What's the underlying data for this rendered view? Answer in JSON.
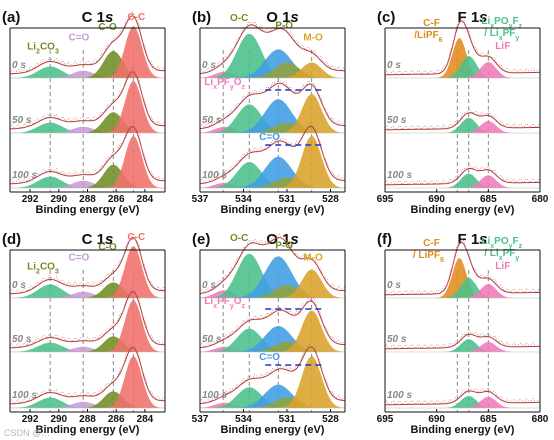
{
  "colors": {
    "li2co3": "#4ac08a",
    "co_c": "#c79bd6",
    "c_o": "#6f8e24",
    "cc": "#f0706b",
    "oc": "#4ac08a",
    "c_eq_o": "#3f9de3",
    "po": "#8fa33f",
    "mo": "#d9a32a",
    "cf": "#e38b1c",
    "lipof": "#4ac08a",
    "lif": "#f07ab8",
    "envelope": "#b23c3c",
    "dash": "#888888",
    "bluedash": "#2233cc"
  },
  "chart_data": [
    {
      "panel": "(a)",
      "title": "C 1s",
      "element": "C 1",
      "orbital": "s",
      "type": "area",
      "kind": "C",
      "xlabel": "Binding energy (eV)",
      "xlim": [
        293.4,
        282.6
      ],
      "xticks": [
        292,
        290,
        288,
        286,
        284
      ],
      "times": [
        "0 s",
        "50 s",
        "100 s"
      ],
      "peaks": [
        {
          "name": "Li2CO3",
          "center": 290.6,
          "fwhm": 2.0,
          "color": "li2co3",
          "amps": [
            0.22,
            0.2,
            0.22
          ]
        },
        {
          "name": "C=O",
          "center": 288.3,
          "fwhm": 1.8,
          "color": "co_c",
          "amps": [
            0.14,
            0.12,
            0.14
          ]
        },
        {
          "name": "C-O",
          "center": 286.2,
          "fwhm": 1.6,
          "color": "c_o",
          "amps": [
            0.52,
            0.4,
            0.45
          ]
        },
        {
          "name": "C-C",
          "center": 284.8,
          "fwhm": 1.4,
          "color": "cc",
          "amps": [
            1.0,
            1.0,
            1.0
          ]
        }
      ],
      "dashes": [
        290.6,
        288.3,
        286.2,
        284.8
      ],
      "annotations": [
        {
          "text": "Li2CO3",
          "x": 291.1,
          "y": 0.55,
          "color": "c_o"
        },
        {
          "text": "C=O",
          "x": 288.6,
          "y": 0.72,
          "color": "co_c"
        },
        {
          "text": "C-O",
          "x": 286.6,
          "y": 0.92,
          "color": "c_o"
        },
        {
          "text": "C-C",
          "x": 284.6,
          "y": 1.12,
          "color": "cc"
        }
      ]
    },
    {
      "panel": "(b)",
      "title": "O 1s",
      "element": "O 1",
      "orbital": "s",
      "type": "area",
      "kind": "O",
      "xlabel": "Binding energy (eV)",
      "xlim": [
        537.0,
        527.0
      ],
      "xticks": [
        537,
        534,
        531,
        528
      ],
      "times": [
        "0 s",
        "50 s",
        "100 s"
      ],
      "peaks": [
        {
          "name": "LixPFyOz",
          "center": 535.3,
          "fwhm": 1.6,
          "color": "lif",
          "amps": [
            0.12,
            0.12,
            0.1
          ]
        },
        {
          "name": "O-C",
          "center": 533.6,
          "fwhm": 2.0,
          "color": "oc",
          "amps": [
            0.85,
            0.55,
            0.5
          ]
        },
        {
          "name": "C=O",
          "center": 531.6,
          "fwhm": 2.2,
          "color": "c_eq_o",
          "amps": [
            0.55,
            0.65,
            0.6
          ]
        },
        {
          "name": "P-O",
          "center": 531.0,
          "fwhm": 2.0,
          "color": "po",
          "amps": [
            0.3,
            0.2,
            0.2
          ]
        },
        {
          "name": "M-O",
          "center": 529.3,
          "fwhm": 1.6,
          "color": "mo",
          "amps": [
            0.3,
            0.75,
            1.0
          ]
        }
      ],
      "dashes": [
        535.4,
        533.6,
        531.6,
        529.3
      ],
      "annotations": [
        {
          "text": "O-C",
          "x": 534.3,
          "y": 1.1,
          "color": "c_o"
        },
        {
          "text": "P-O",
          "x": 531.2,
          "y": 0.95,
          "color": "c_o"
        },
        {
          "text": "M-O",
          "x": 529.2,
          "y": 0.72,
          "color": "mo"
        }
      ],
      "midlabels": [
        {
          "text": "LixPFyOz",
          "x": 535.3,
          "row": 1,
          "color": "lif"
        },
        {
          "text": "C=O",
          "x": 532.2,
          "row": 2,
          "color": "c_eq_o"
        }
      ],
      "bluedash_rows": [
        1,
        2
      ]
    },
    {
      "panel": "(c)",
      "title": "F 1s",
      "element": "F 1",
      "orbital": "s",
      "type": "area",
      "kind": "F",
      "xlabel": "Binding energy (eV)",
      "xlim": [
        695,
        680
      ],
      "xticks": [
        695,
        690,
        685,
        680
      ],
      "times": [
        "0 s",
        "50 s",
        "100 s"
      ],
      "peaks": [
        {
          "name": "C-F/LiPF6",
          "center": 687.8,
          "fwhm": 1.6,
          "color": "cf",
          "amps": [
            1.0,
            0.0,
            0.0
          ]
        },
        {
          "name": "LixPOyFz/LixPFy",
          "center": 686.9,
          "fwhm": 1.8,
          "color": "lipof",
          "amps": [
            0.55,
            0.38,
            0.36
          ]
        },
        {
          "name": "LiF",
          "center": 685.0,
          "fwhm": 1.8,
          "color": "lif",
          "amps": [
            0.4,
            0.3,
            0.32
          ]
        }
      ],
      "dashes": [
        688.0,
        686.9,
        685.0
      ],
      "annotations": [
        {
          "text": "C-F",
          "x": 690.5,
          "y": 1.3,
          "color": "cf"
        },
        {
          "text": "/LiPF6",
          "x": 690.8,
          "y": 1.0,
          "color": "cf"
        },
        {
          "text": "LixPOyFz",
          "x": 683.7,
          "y": 1.35,
          "color": "lipof"
        },
        {
          "text": "/ LixPFy",
          "x": 683.7,
          "y": 1.05,
          "color": "lipof"
        },
        {
          "text": "LiF",
          "x": 683.6,
          "y": 0.72,
          "color": "lif"
        }
      ]
    },
    {
      "panel": "(d)",
      "title": "C 1s",
      "element": "C 1",
      "orbital": "s",
      "type": "area",
      "kind": "C",
      "xlabel": "Binding energy (eV)",
      "xlim": [
        293.4,
        282.6
      ],
      "xticks": [
        292,
        290,
        288,
        286,
        284
      ],
      "times": [
        "0 s",
        "50 s",
        "100 s"
      ],
      "peaks": [
        {
          "name": "Li2CO3",
          "center": 290.6,
          "fwhm": 2.0,
          "color": "li2co3",
          "amps": [
            0.26,
            0.18,
            0.2
          ]
        },
        {
          "name": "C=O",
          "center": 288.3,
          "fwhm": 1.8,
          "color": "co_c",
          "amps": [
            0.12,
            0.1,
            0.12
          ]
        },
        {
          "name": "C-O",
          "center": 286.2,
          "fwhm": 1.6,
          "color": "c_o",
          "amps": [
            0.3,
            0.3,
            0.32
          ]
        },
        {
          "name": "C-C",
          "center": 284.8,
          "fwhm": 1.4,
          "color": "cc",
          "amps": [
            1.0,
            1.0,
            1.0
          ]
        }
      ],
      "dashes": [
        290.6,
        288.3,
        286.2,
        284.8
      ],
      "annotations": [
        {
          "text": "Li2CO3",
          "x": 291.1,
          "y": 0.55,
          "color": "c_o"
        },
        {
          "text": "C=O",
          "x": 288.6,
          "y": 0.72,
          "color": "co_c"
        },
        {
          "text": "C-O",
          "x": 286.6,
          "y": 0.92,
          "color": "c_o"
        },
        {
          "text": "C-C",
          "x": 284.6,
          "y": 1.12,
          "color": "cc"
        }
      ]
    },
    {
      "panel": "(e)",
      "title": "O 1s",
      "element": "O 1",
      "orbital": "s",
      "type": "area",
      "kind": "O",
      "xlabel": "Binding energy (eV)",
      "xlim": [
        537.0,
        527.0
      ],
      "xticks": [
        537,
        534,
        531,
        528
      ],
      "times": [
        "0 s",
        "50 s",
        "100 s"
      ],
      "peaks": [
        {
          "name": "LixPFyOz",
          "center": 535.3,
          "fwhm": 1.6,
          "color": "lif",
          "amps": [
            0.15,
            0.1,
            0.1
          ]
        },
        {
          "name": "O-C",
          "center": 533.6,
          "fwhm": 2.0,
          "color": "oc",
          "amps": [
            0.85,
            0.45,
            0.4
          ]
        },
        {
          "name": "C=O",
          "center": 531.6,
          "fwhm": 2.2,
          "color": "c_eq_o",
          "amps": [
            0.8,
            0.5,
            0.45
          ]
        },
        {
          "name": "P-O",
          "center": 531.0,
          "fwhm": 2.0,
          "color": "po",
          "amps": [
            0.25,
            0.2,
            0.2
          ]
        },
        {
          "name": "M-O",
          "center": 529.3,
          "fwhm": 1.6,
          "color": "mo",
          "amps": [
            0.55,
            0.8,
            1.0
          ]
        }
      ],
      "dashes": [
        535.4,
        533.6,
        531.6,
        529.3
      ],
      "annotations": [
        {
          "text": "O-C",
          "x": 534.3,
          "y": 1.1,
          "color": "c_o"
        },
        {
          "text": "P-O",
          "x": 531.2,
          "y": 0.95,
          "color": "c_o"
        },
        {
          "text": "M-O",
          "x": 529.2,
          "y": 0.72,
          "color": "mo"
        }
      ],
      "midlabels": [
        {
          "text": "LixPFyOz",
          "x": 535.3,
          "row": 1,
          "color": "lif"
        },
        {
          "text": "C=O",
          "x": 532.2,
          "row": 2,
          "color": "c_eq_o"
        }
      ],
      "bluedash_rows": [
        1,
        2
      ]
    },
    {
      "panel": "(f)",
      "title": "F 1s",
      "element": "F 1",
      "orbital": "s",
      "type": "area",
      "kind": "F",
      "xlabel": "Binding energy (eV)",
      "xlim": [
        695,
        680
      ],
      "xticks": [
        695,
        690,
        685,
        680
      ],
      "times": [
        "0 s",
        "50 s",
        "100 s"
      ],
      "peaks": [
        {
          "name": "C-F/LiPF6",
          "center": 687.8,
          "fwhm": 1.6,
          "color": "cf",
          "amps": [
            1.0,
            0.0,
            0.0
          ]
        },
        {
          "name": "LixPOyFz/LixPFy",
          "center": 686.9,
          "fwhm": 1.8,
          "color": "lipof",
          "amps": [
            0.5,
            0.32,
            0.3
          ]
        },
        {
          "name": "LiF",
          "center": 685.0,
          "fwhm": 1.8,
          "color": "lif",
          "amps": [
            0.35,
            0.25,
            0.28
          ]
        }
      ],
      "dashes": [
        688.0,
        686.9,
        685.0
      ],
      "annotations": [
        {
          "text": "C-F",
          "x": 690.5,
          "y": 1.3,
          "color": "cf"
        },
        {
          "text": "/ LiPF6",
          "x": 690.8,
          "y": 1.0,
          "color": "cf"
        },
        {
          "text": "LixPOyFz",
          "x": 683.7,
          "y": 1.35,
          "color": "lipof"
        },
        {
          "text": "/ LixPFy",
          "x": 683.7,
          "y": 1.05,
          "color": "lipof"
        },
        {
          "text": "LiF",
          "x": 683.6,
          "y": 0.72,
          "color": "lif"
        }
      ]
    }
  ],
  "watermark": "CSDN @…"
}
